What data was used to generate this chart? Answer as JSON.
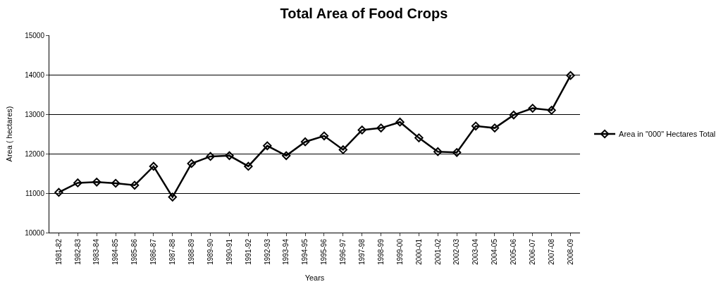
{
  "chart_data": {
    "type": "line",
    "title": "Total Area of Food Crops",
    "xlabel": "Years",
    "ylabel": "Area ( hectares)",
    "categories": [
      "1981-82",
      "1982-83",
      "1983-84",
      "1984-85",
      "1985-86",
      "1986-87",
      "1987-88",
      "1988-89",
      "1989-90",
      "1990-91",
      "1991-92",
      "1992-93",
      "1993-94",
      "1994-95",
      "1995-96",
      "1996-97",
      "1997-98",
      "1998-99",
      "1999-00",
      "2000-01",
      "2001-02",
      "2002-03",
      "2003-04",
      "2004-05",
      "2005-06",
      "2006-07",
      "2007-08",
      "2008-09"
    ],
    "series": [
      {
        "name": "Area in \"000\" Hectares Total",
        "color": "#000000",
        "values": [
          11020,
          11260,
          11280,
          11250,
          11200,
          11680,
          10900,
          11750,
          11930,
          11950,
          11680,
          12200,
          11950,
          12300,
          12450,
          12100,
          12600,
          12650,
          12800,
          12400,
          12050,
          12030,
          12700,
          12650,
          12980,
          13150,
          13100,
          13980
        ]
      }
    ],
    "ylim": [
      10000,
      15000
    ],
    "yticks": [
      10000,
      11000,
      12000,
      13000,
      14000,
      15000
    ],
    "grid": "y",
    "legend": "right",
    "marker": "diamond",
    "line_style": "solid"
  }
}
